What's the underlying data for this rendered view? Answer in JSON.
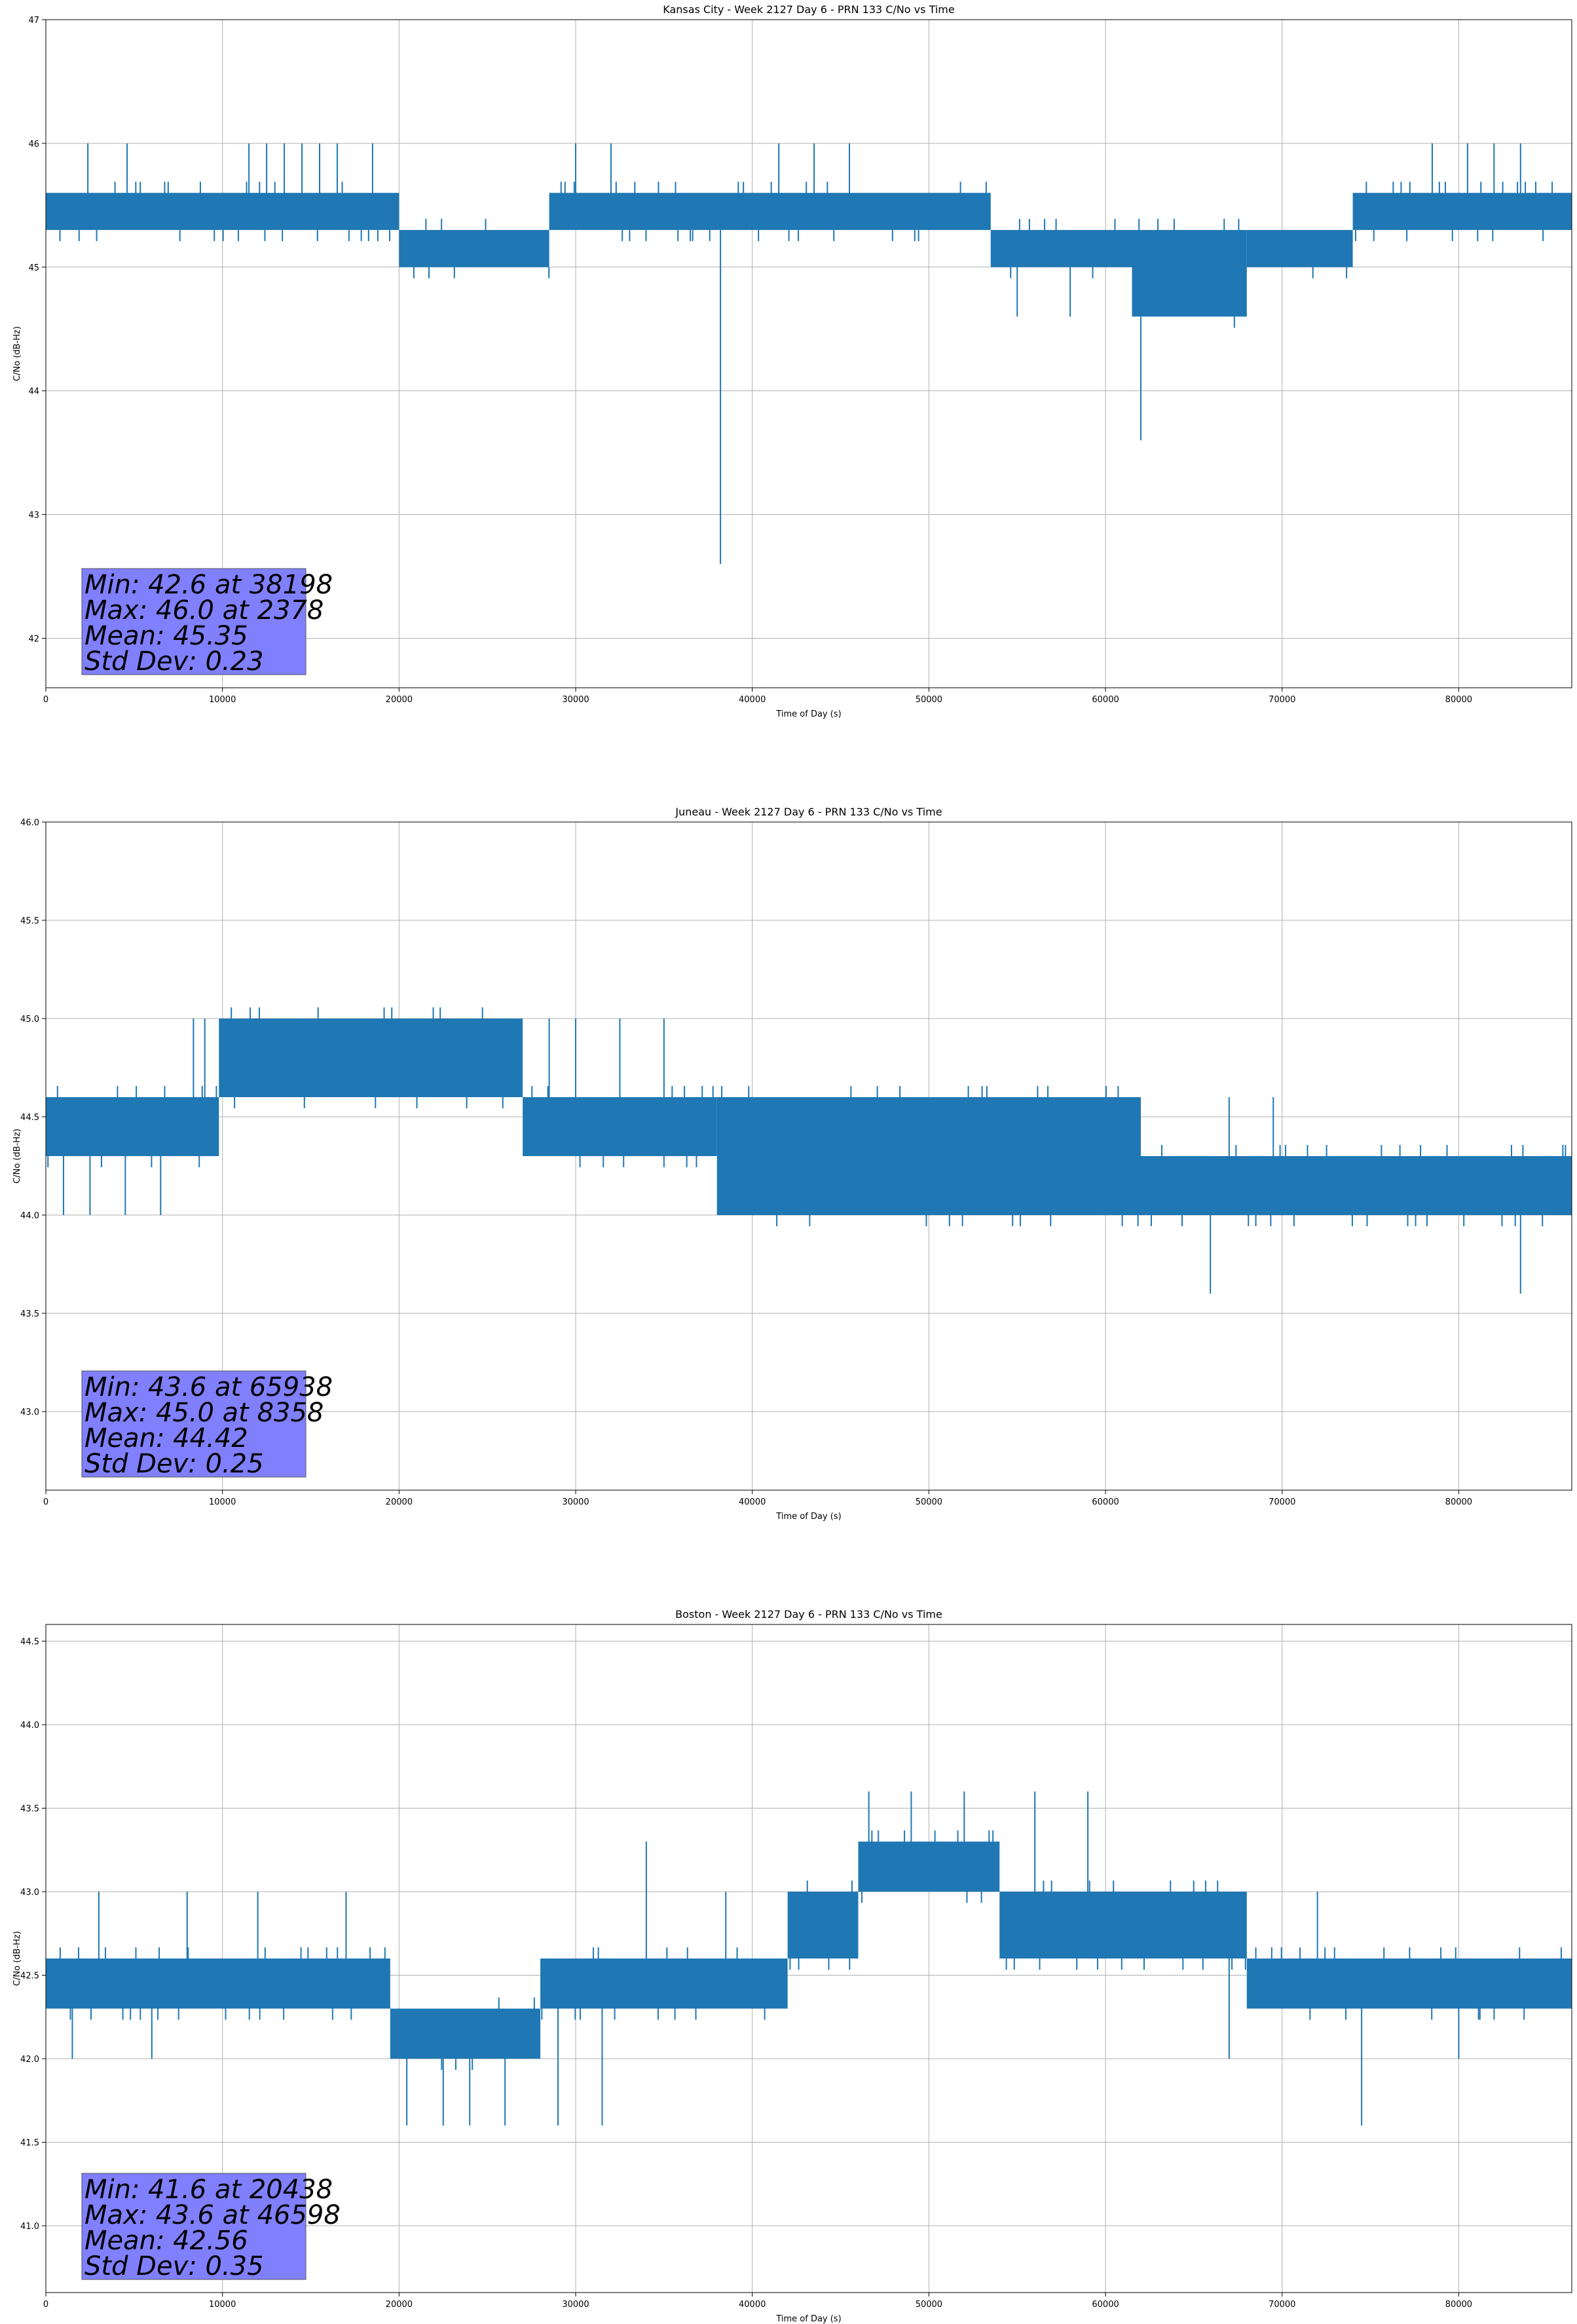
{
  "figure": {
    "colors": {
      "series": "#1f77b4",
      "grid": "#b0b0b0",
      "stats_box": "#8080ff"
    }
  },
  "chart_data": [
    {
      "type": "line",
      "title": "Kansas City - Week 2127 Day 6 - PRN 133 C/No vs Time",
      "xlabel": "Time of Day (s)",
      "ylabel": "C/No (dB-Hz)",
      "xlim": [
        0,
        86400
      ],
      "ylim": [
        41.6,
        47.0
      ],
      "xticks": [
        0,
        10000,
        20000,
        30000,
        40000,
        50000,
        60000,
        70000,
        80000
      ],
      "yticks": [
        42,
        43,
        44,
        45,
        46,
        47
      ],
      "ytick_labels": [
        "42",
        "43",
        "44",
        "45",
        "46",
        "47"
      ],
      "grid": true,
      "stats": {
        "min": "Min: 42.6 at 38198",
        "max": "Max: 46.0 at 2378",
        "mean": "Mean: 45.35",
        "std": "Std Dev: 0.23"
      },
      "series": [
        {
          "x_start": 0,
          "x_step": 400,
          "bands": [
            {
              "x": [
                0,
                20000
              ],
              "low": 45.3,
              "high": 45.6
            },
            {
              "x": [
                20000,
                28500
              ],
              "low": 45.0,
              "high": 45.3
            },
            {
              "x": [
                28500,
                53500
              ],
              "low": 45.3,
              "high": 45.6
            },
            {
              "x": [
                53500,
                61500
              ],
              "low": 45.0,
              "high": 45.3
            },
            {
              "x": [
                61500,
                68000
              ],
              "low": 44.6,
              "high": 45.3
            },
            {
              "x": [
                68000,
                74000
              ],
              "low": 45.0,
              "high": 45.3
            },
            {
              "x": [
                74000,
                86400
              ],
              "low": 45.3,
              "high": 45.6
            }
          ],
          "spikes": [
            {
              "x": 2378,
              "y": 46.0
            },
            {
              "x": 4600,
              "y": 46.0
            },
            {
              "x": 11500,
              "y": 46.0
            },
            {
              "x": 12500,
              "y": 46.0
            },
            {
              "x": 13500,
              "y": 46.0
            },
            {
              "x": 14500,
              "y": 46.0
            },
            {
              "x": 15500,
              "y": 46.0
            },
            {
              "x": 16500,
              "y": 46.0
            },
            {
              "x": 18500,
              "y": 46.0
            },
            {
              "x": 30000,
              "y": 46.0
            },
            {
              "x": 32000,
              "y": 46.0
            },
            {
              "x": 38198,
              "y": 42.6
            },
            {
              "x": 41500,
              "y": 46.0
            },
            {
              "x": 43500,
              "y": 46.0
            },
            {
              "x": 45500,
              "y": 46.0
            },
            {
              "x": 55000,
              "y": 44.6
            },
            {
              "x": 58000,
              "y": 44.6
            },
            {
              "x": 62000,
              "y": 43.6
            },
            {
              "x": 67500,
              "y": 44.6
            },
            {
              "x": 78500,
              "y": 46.0
            },
            {
              "x": 80500,
              "y": 46.0
            },
            {
              "x": 82000,
              "y": 46.0
            },
            {
              "x": 83500,
              "y": 46.0
            }
          ]
        }
      ]
    },
    {
      "type": "line",
      "title": "Juneau - Week 2127 Day 6 - PRN 133 C/No vs Time",
      "xlabel": "Time of Day (s)",
      "ylabel": "C/No (dB-Hz)",
      "xlim": [
        0,
        86400
      ],
      "ylim": [
        42.6,
        46.0
      ],
      "xticks": [
        0,
        10000,
        20000,
        30000,
        40000,
        50000,
        60000,
        70000,
        80000
      ],
      "yticks": [
        43.0,
        43.5,
        44.0,
        44.5,
        45.0,
        45.5,
        46.0
      ],
      "ytick_labels": [
        "43.0",
        "43.5",
        "44.0",
        "44.5",
        "45.0",
        "45.5",
        "46.0"
      ],
      "grid": true,
      "stats": {
        "min": "Min: 43.6 at 65938",
        "max": "Max: 45.0 at 8358",
        "mean": "Mean: 44.42",
        "std": "Std Dev: 0.25"
      },
      "series": [
        {
          "x_start": 0,
          "x_step": 400,
          "bands": [
            {
              "x": [
                0,
                9800
              ],
              "low": 44.3,
              "high": 44.6
            },
            {
              "x": [
                9800,
                27000
              ],
              "low": 44.6,
              "high": 45.0
            },
            {
              "x": [
                27000,
                38000
              ],
              "low": 44.3,
              "high": 44.6
            },
            {
              "x": [
                38000,
                62000
              ],
              "low": 44.0,
              "high": 44.6
            },
            {
              "x": [
                62000,
                86400
              ],
              "low": 44.0,
              "high": 44.3
            }
          ],
          "spikes": [
            {
              "x": 1000,
              "y": 44.0
            },
            {
              "x": 2500,
              "y": 44.0
            },
            {
              "x": 4500,
              "y": 44.0
            },
            {
              "x": 6500,
              "y": 44.0
            },
            {
              "x": 8358,
              "y": 45.0
            },
            {
              "x": 9000,
              "y": 45.0
            },
            {
              "x": 28500,
              "y": 45.0
            },
            {
              "x": 30000,
              "y": 45.0
            },
            {
              "x": 32500,
              "y": 45.0
            },
            {
              "x": 35000,
              "y": 45.0
            },
            {
              "x": 65938,
              "y": 43.6
            },
            {
              "x": 67000,
              "y": 44.6
            },
            {
              "x": 69500,
              "y": 44.6
            },
            {
              "x": 83500,
              "y": 43.6
            }
          ]
        }
      ]
    },
    {
      "type": "line",
      "title": "Boston - Week 2127 Day 6 - PRN 133 C/No vs Time",
      "xlabel": "Time of Day (s)",
      "ylabel": "C/No (dB-Hz)",
      "xlim": [
        0,
        86400
      ],
      "ylim": [
        40.6,
        44.6
      ],
      "xticks": [
        0,
        10000,
        20000,
        30000,
        40000,
        50000,
        60000,
        70000,
        80000
      ],
      "yticks": [
        41.0,
        41.5,
        42.0,
        42.5,
        43.0,
        43.5,
        44.0,
        44.5
      ],
      "ytick_labels": [
        "41.0",
        "41.5",
        "42.0",
        "42.5",
        "43.0",
        "43.5",
        "44.0",
        "44.5"
      ],
      "grid": true,
      "stats": {
        "min": "Min: 41.6 at 20438",
        "max": "Max: 43.6 at 46598",
        "mean": "Mean: 42.56",
        "std": "Std Dev: 0.35"
      },
      "series": [
        {
          "x_start": 0,
          "x_step": 400,
          "bands": [
            {
              "x": [
                0,
                19500
              ],
              "low": 42.3,
              "high": 42.6
            },
            {
              "x": [
                19500,
                28000
              ],
              "low": 42.0,
              "high": 42.3
            },
            {
              "x": [
                28000,
                42000
              ],
              "low": 42.3,
              "high": 42.6
            },
            {
              "x": [
                42000,
                46000
              ],
              "low": 42.6,
              "high": 43.0
            },
            {
              "x": [
                46000,
                54000
              ],
              "low": 43.0,
              "high": 43.3
            },
            {
              "x": [
                54000,
                68000
              ],
              "low": 42.6,
              "high": 43.0
            },
            {
              "x": [
                68000,
                86400
              ],
              "low": 42.3,
              "high": 42.6
            }
          ],
          "spikes": [
            {
              "x": 1500,
              "y": 42.0
            },
            {
              "x": 3000,
              "y": 43.0
            },
            {
              "x": 6000,
              "y": 42.0
            },
            {
              "x": 8000,
              "y": 43.0
            },
            {
              "x": 12000,
              "y": 43.0
            },
            {
              "x": 17000,
              "y": 43.0
            },
            {
              "x": 20438,
              "y": 41.6
            },
            {
              "x": 22500,
              "y": 41.6
            },
            {
              "x": 24000,
              "y": 41.6
            },
            {
              "x": 26000,
              "y": 41.6
            },
            {
              "x": 29000,
              "y": 41.6
            },
            {
              "x": 31500,
              "y": 41.6
            },
            {
              "x": 34000,
              "y": 43.3
            },
            {
              "x": 38500,
              "y": 43.0
            },
            {
              "x": 46598,
              "y": 43.6
            },
            {
              "x": 49000,
              "y": 43.6
            },
            {
              "x": 52000,
              "y": 43.6
            },
            {
              "x": 56000,
              "y": 43.6
            },
            {
              "x": 59000,
              "y": 43.6
            },
            {
              "x": 63000,
              "y": 43.0
            },
            {
              "x": 67000,
              "y": 42.0
            },
            {
              "x": 72000,
              "y": 43.0
            },
            {
              "x": 74500,
              "y": 41.6
            },
            {
              "x": 80000,
              "y": 42.0
            }
          ]
        }
      ]
    }
  ]
}
